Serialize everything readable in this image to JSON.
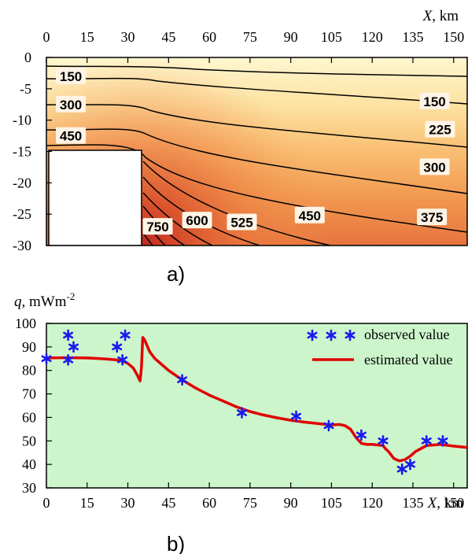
{
  "chart_data": [
    {
      "type": "heatmap",
      "panel": "a)",
      "xlabel_var": "X",
      "xlabel_unit": ", km",
      "x_ticks": [
        "0",
        "15",
        "30",
        "45",
        "60",
        "75",
        "90",
        "105",
        "120",
        "135",
        "150"
      ],
      "y_ticks": [
        "0",
        "-5",
        "-10",
        "-15",
        "-20",
        "-25",
        "-30"
      ],
      "xlim": [
        0,
        155
      ],
      "ylim": [
        -30,
        0
      ],
      "x_axis_position": "top",
      "colormap": [
        "#fff3c6",
        "#fde2a3",
        "#f9be72",
        "#f19850",
        "#e46c3a",
        "#c53a26"
      ],
      "isotherm_labels": [
        {
          "text": "150",
          "x": 9,
          "y": -3
        },
        {
          "text": "300",
          "x": 9,
          "y": -7.5
        },
        {
          "text": "450",
          "x": 9,
          "y": -12.5
        },
        {
          "text": "150",
          "x": 143,
          "y": -7
        },
        {
          "text": "225",
          "x": 145,
          "y": -11.5
        },
        {
          "text": "300",
          "x": 143,
          "y": -17.5
        },
        {
          "text": "375",
          "x": 142,
          "y": -25.5
        },
        {
          "text": "450",
          "x": 97,
          "y": -25.2
        },
        {
          "text": "525",
          "x": 72,
          "y": -26.3
        },
        {
          "text": "600",
          "x": 55.5,
          "y": -26
        },
        {
          "text": "750",
          "x": 41,
          "y": -27
        }
      ]
    },
    {
      "type": "line",
      "panel": "b)",
      "ylabel_var": "q,",
      "ylabel_unit": " mWm",
      "ylabel_sup": "-2",
      "xlabel_var": "X",
      "xlabel_unit": ", km",
      "x_ticks": [
        "0",
        "15",
        "30",
        "45",
        "60",
        "75",
        "90",
        "105",
        "120",
        "135",
        "150"
      ],
      "y_ticks": [
        "30",
        "40",
        "50",
        "60",
        "70",
        "80",
        "90",
        "100"
      ],
      "xlim": [
        0,
        155
      ],
      "ylim": [
        30,
        100
      ],
      "legend_position": "top-right",
      "background": "#ccf5cc",
      "series": [
        {
          "name": "observed value",
          "marker": "*",
          "color": "#1a1aee",
          "x": [
            0,
            8,
            8,
            10,
            26,
            28,
            29,
            50,
            72,
            92,
            104,
            116,
            124,
            131,
            134,
            140,
            146
          ],
          "y": [
            85,
            84.5,
            95,
            90,
            90,
            84.5,
            95,
            76,
            62,
            60.5,
            56.5,
            52.5,
            50,
            38,
            40,
            50,
            50
          ]
        },
        {
          "name": "estimated value",
          "marker": "line",
          "color": "#e00000",
          "x": [
            0,
            5,
            10,
            15,
            20,
            25,
            28,
            30,
            32,
            33.5,
            34.5,
            35,
            35.5,
            36.2,
            38,
            40,
            45,
            50,
            55,
            60,
            65,
            70,
            75,
            80,
            85,
            90,
            95,
            100,
            105,
            108,
            110,
            112,
            114,
            116,
            118,
            120,
            122,
            124,
            125,
            126,
            128,
            130,
            132,
            134,
            136,
            140,
            145,
            150,
            155
          ],
          "y": [
            85.3,
            85.4,
            85.4,
            85.3,
            85,
            84.6,
            84,
            83,
            81,
            78,
            75.5,
            81,
            94,
            93,
            88,
            85,
            80,
            76,
            72.5,
            69.5,
            67,
            64.5,
            62.5,
            61,
            59.8,
            58.8,
            58,
            57.4,
            56.8,
            57,
            56.5,
            55,
            51.5,
            49,
            48.5,
            48.5,
            48.3,
            48,
            46.5,
            45.5,
            42.5,
            41.5,
            42,
            43.5,
            45.5,
            48,
            48.5,
            47.8,
            47.2
          ]
        }
      ]
    }
  ],
  "captions": {
    "a": "a)",
    "b": "b)"
  }
}
